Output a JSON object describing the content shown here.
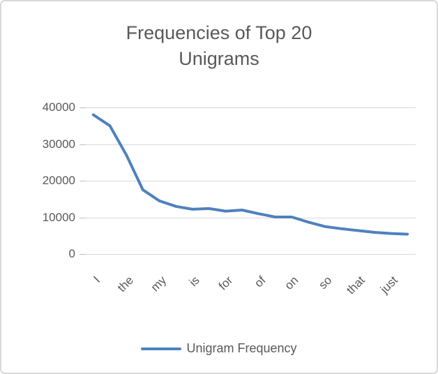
{
  "chart": {
    "title": "Frequencies of Top 20 Unigrams",
    "legend": {
      "label": "Unigram Frequency"
    },
    "colors": {
      "line": "#4F81BD",
      "text": "#595959",
      "gridline": "#D9D9D9",
      "tick": "#BFBFBF",
      "frame_border": "#D9D9D9"
    }
  },
  "chart_data": {
    "type": "line",
    "title": "Frequencies of Top 20 Unigrams",
    "series": [
      {
        "name": "Unigram Frequency",
        "values": [
          38000,
          35000,
          27000,
          17500,
          14500,
          13000,
          12200,
          12400,
          11700,
          12000,
          11000,
          10100,
          10100,
          8700,
          7500,
          6900,
          6400,
          5900,
          5600,
          5400
        ]
      }
    ],
    "n_points": 20,
    "x_tick_labels": [
      "I",
      "the",
      "my",
      "is",
      "for",
      "of",
      "on",
      "so",
      "that",
      "just"
    ],
    "x_label_interval": 2,
    "xlabel": "",
    "ylabel": "",
    "y_ticks": [
      0,
      10000,
      20000,
      30000,
      40000
    ],
    "ylim": [
      0,
      40000
    ],
    "grid": "horizontal",
    "legend_position": "bottom"
  }
}
